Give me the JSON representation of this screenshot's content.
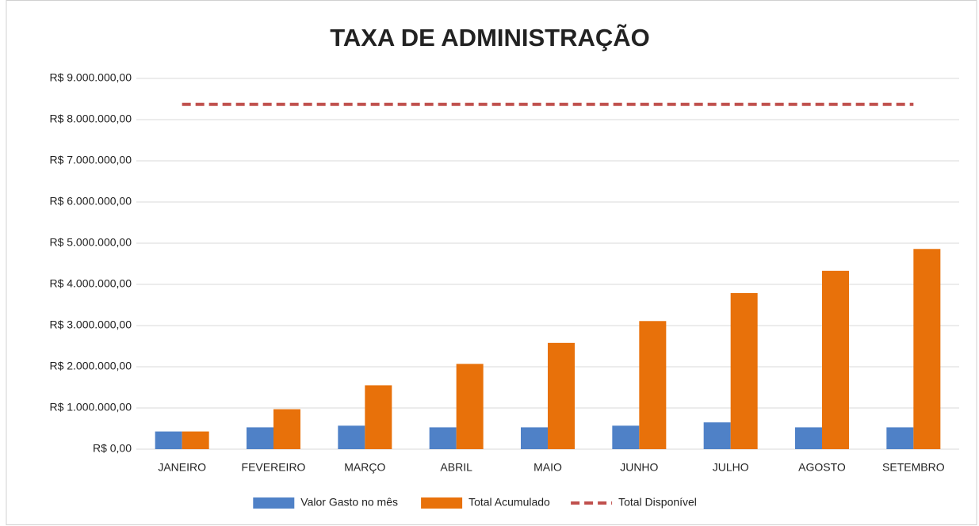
{
  "chart_data": {
    "type": "bar",
    "title": "TAXA DE ADMINISTRAÇÃO",
    "categories": [
      "JANEIRO",
      "FEVEREIRO",
      "MARÇO",
      "ABRIL",
      "MAIO",
      "JUNHO",
      "JULHO",
      "AGOSTO",
      "SETEMBRO"
    ],
    "series": [
      {
        "name": "Valor Gasto no mês",
        "color": "#4f81c7",
        "values": [
          430000,
          530000,
          570000,
          530000,
          530000,
          570000,
          650000,
          530000,
          530000
        ]
      },
      {
        "name": "Total Acumulado",
        "color": "#e8710a",
        "values": [
          430000,
          970000,
          1550000,
          2070000,
          2580000,
          3110000,
          3790000,
          4330000,
          4860000
        ]
      },
      {
        "name": "Total Disponível",
        "color": "#c0504d",
        "type": "line",
        "dash": true,
        "values": [
          8370000,
          8370000,
          8370000,
          8370000,
          8370000,
          8370000,
          8370000,
          8370000,
          8370000
        ]
      }
    ],
    "ylim": [
      0,
      9000000
    ],
    "yticks": [
      {
        "value": 0,
        "label": "R$ 0,00"
      },
      {
        "value": 1000000,
        "label": "R$ 1.000.000,00"
      },
      {
        "value": 2000000,
        "label": "R$ 2.000.000,00"
      },
      {
        "value": 3000000,
        "label": "R$ 3.000.000,00"
      },
      {
        "value": 4000000,
        "label": "R$ 4.000.000,00"
      },
      {
        "value": 5000000,
        "label": "R$ 5.000.000,00"
      },
      {
        "value": 6000000,
        "label": "R$ 6.000.000,00"
      },
      {
        "value": 7000000,
        "label": "R$ 7.000.000,00"
      },
      {
        "value": 8000000,
        "label": "R$ 8.000.000,00"
      },
      {
        "value": 9000000,
        "label": "R$ 9.000.000,00"
      }
    ],
    "grid": true,
    "legend": "bottom"
  }
}
